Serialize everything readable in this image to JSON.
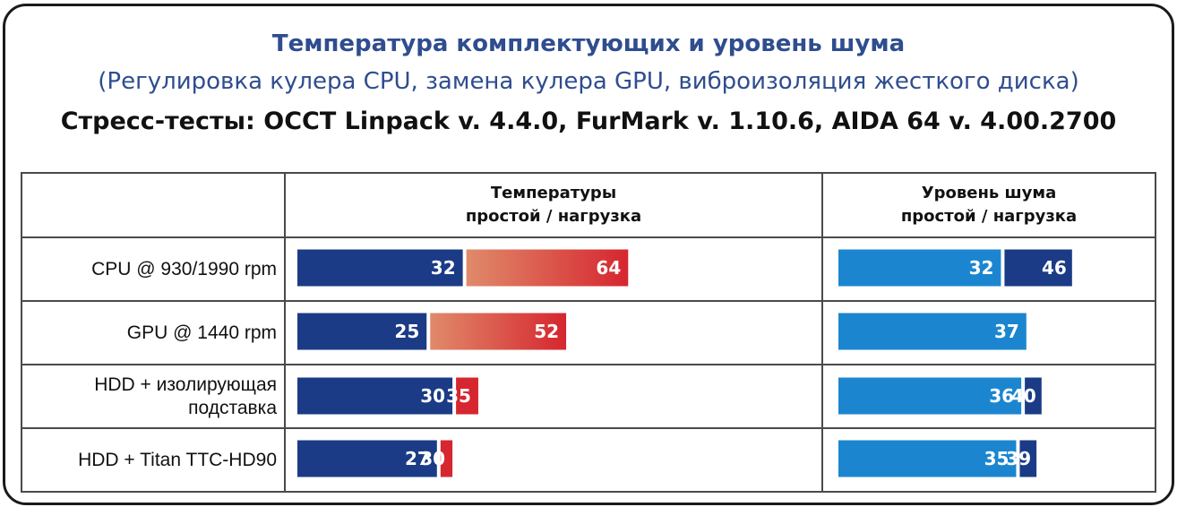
{
  "title": "Температура комплектующих и уровень шума",
  "subtitle": "(Регулировка кулера CPU, замена кулера GPU, виброизоляция жесткого диска)",
  "stress_tests": "Стресс-тесты: OCCT Linpack v. 4.4.0, FurMark v. 1.10.6, AIDA 64 v. 4.00.2700",
  "header": {
    "temp_line1": "Температуры",
    "temp_line2": "простой / нагрузка",
    "noise_line1": "Уровень шума",
    "noise_line2": "простой / нагрузка"
  },
  "rows": [
    {
      "label_line1": "CPU @ 930/1990 rpm",
      "label_line2": ""
    },
    {
      "label_line1": "GPU @ 1440 rpm",
      "label_line2": ""
    },
    {
      "label_line1": "HDD + изолирующая",
      "label_line2": "подставка"
    },
    {
      "label_line1": "HDD + Titan TTC-HD90",
      "label_line2": ""
    }
  ],
  "colors": {
    "title": "#2f4d8f",
    "temp_idle": "#1b3b86",
    "temp_load_gradient_start": "#e08a6a",
    "temp_load": "#d6262f",
    "noise_idle": "#1b86cf",
    "noise_load": "#1b3b86"
  },
  "chart_data": [
    {
      "type": "bar",
      "orientation": "horizontal",
      "stacked": true,
      "title": "Температуры простой / нагрузка",
      "categories": [
        "CPU @ 930/1990 rpm",
        "GPU @ 1440 rpm",
        "HDD + изолирующая подставка",
        "HDD + Titan TTC-HD90"
      ],
      "series": [
        {
          "name": "простой",
          "values": [
            32,
            25,
            30,
            27
          ]
        },
        {
          "name": "нагрузка",
          "values": [
            64,
            52,
            35,
            30
          ]
        }
      ],
      "load_bar_style": [
        "gradient",
        "gradient",
        "solid",
        "solid"
      ]
    },
    {
      "type": "bar",
      "orientation": "horizontal",
      "stacked": true,
      "title": "Уровень шума простой / нагрузка",
      "categories": [
        "CPU @ 930/1990 rpm",
        "GPU @ 1440 rpm",
        "HDD + изолирующая подставка",
        "HDD + Titan TTC-HD90"
      ],
      "series": [
        {
          "name": "простой",
          "values": [
            32,
            37,
            36,
            35
          ]
        },
        {
          "name": "нагрузка",
          "values": [
            46,
            null,
            40,
            39
          ]
        }
      ]
    }
  ]
}
